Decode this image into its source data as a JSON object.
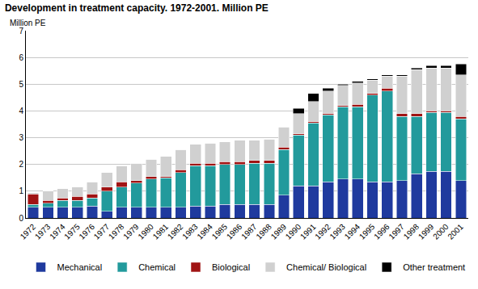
{
  "chart_data": {
    "type": "bar",
    "title": "Development in treatment capacity. 1972-2001. Million PE",
    "y_label": "Million PE",
    "stacked": true,
    "grid": true,
    "legend": "bottom",
    "ylim": [
      0,
      7
    ],
    "yticks": [
      0,
      1,
      2,
      3,
      4,
      5,
      6,
      7
    ],
    "categories": [
      "1972",
      "1973",
      "1974",
      "1975",
      "1976",
      "1977",
      "1978",
      "1979",
      "1980",
      "1981",
      "1982",
      "1983",
      "1984",
      "1985",
      "1986",
      "1987",
      "1988",
      "1989",
      "1990",
      "1991",
      "1992",
      "1993",
      "1994",
      "1995",
      "1996",
      "1997",
      "1998",
      "1999",
      "2000",
      "2001"
    ],
    "series": [
      {
        "name": "Mechanical",
        "color": "#1f3a9e",
        "values": [
          0.4,
          0.4,
          0.4,
          0.4,
          0.45,
          0.25,
          0.4,
          0.4,
          0.4,
          0.4,
          0.4,
          0.45,
          0.45,
          0.5,
          0.5,
          0.5,
          0.5,
          0.85,
          1.2,
          1.2,
          1.35,
          1.45,
          1.45,
          1.35,
          1.35,
          1.4,
          1.65,
          1.75,
          1.75,
          1.4
        ]
      },
      {
        "name": "Chemical",
        "color": "#229a9c",
        "values": [
          0.1,
          0.15,
          0.25,
          0.25,
          0.3,
          0.75,
          0.75,
          0.9,
          1.05,
          1.1,
          1.3,
          1.5,
          1.5,
          1.5,
          1.5,
          1.55,
          1.55,
          1.7,
          1.9,
          2.35,
          2.5,
          2.7,
          2.7,
          3.25,
          3.4,
          2.4,
          2.15,
          2.2,
          2.2,
          2.3
        ]
      },
      {
        "name": "Biological",
        "color": "#a01414",
        "values": [
          0.4,
          0.1,
          0.1,
          0.15,
          0.15,
          0.15,
          0.2,
          0.1,
          0.1,
          0.05,
          0.1,
          0.1,
          0.1,
          0.1,
          0.1,
          0.1,
          0.1,
          0.1,
          0.05,
          0.05,
          0.05,
          0.05,
          0.1,
          0.05,
          0.1,
          0.1,
          0.1,
          0.05,
          0.05,
          0.1
        ]
      },
      {
        "name": "Chemical/ Biological",
        "color": "#d0d0d0",
        "values": [
          0.05,
          0.35,
          0.35,
          0.35,
          0.45,
          0.55,
          0.6,
          0.65,
          0.65,
          0.75,
          0.75,
          0.7,
          0.75,
          0.75,
          0.8,
          0.75,
          0.8,
          0.75,
          0.75,
          0.75,
          0.85,
          0.75,
          0.8,
          0.5,
          0.45,
          1.4,
          1.65,
          1.6,
          1.6,
          1.55
        ]
      },
      {
        "name": "Other treatment",
        "color": "#000000",
        "values": [
          0,
          0,
          0,
          0,
          0,
          0,
          0,
          0,
          0,
          0,
          0,
          0,
          0,
          0,
          0,
          0,
          0,
          0,
          0.2,
          0.3,
          0.1,
          0.05,
          0.05,
          0.05,
          0.05,
          0.05,
          0.05,
          0.1,
          0.1,
          0.4
        ]
      }
    ]
  }
}
